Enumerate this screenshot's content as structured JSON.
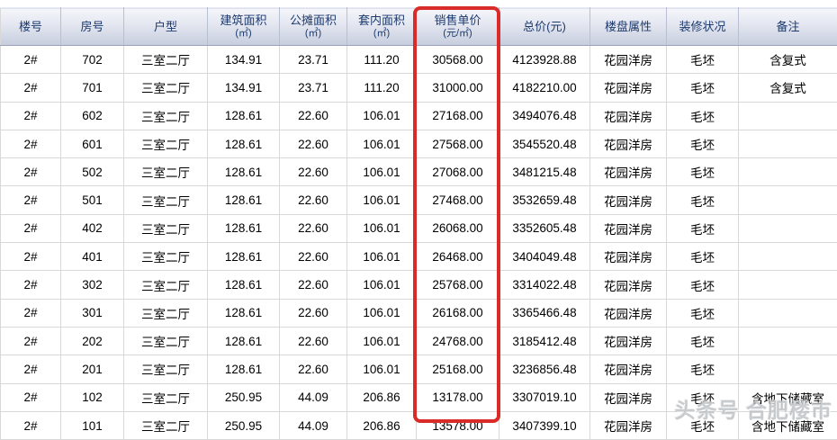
{
  "table": {
    "columns": [
      {
        "label": "楼号",
        "sub": ""
      },
      {
        "label": "房号",
        "sub": ""
      },
      {
        "label": "户型",
        "sub": ""
      },
      {
        "label": "建筑面积",
        "sub": "(㎡)"
      },
      {
        "label": "公摊面积",
        "sub": "(㎡)"
      },
      {
        "label": "套内面积",
        "sub": "(㎡)"
      },
      {
        "label": "销售单价",
        "sub": "(元/㎡)"
      },
      {
        "label": "总价(元)",
        "sub": ""
      },
      {
        "label": "楼盘属性",
        "sub": ""
      },
      {
        "label": "装修状况",
        "sub": ""
      },
      {
        "label": "备注",
        "sub": ""
      }
    ],
    "rows": [
      [
        "2#",
        "702",
        "三室二厅",
        "134.91",
        "23.71",
        "111.20",
        "30568.00",
        "4123928.88",
        "花园洋房",
        "毛坯",
        "含复式"
      ],
      [
        "2#",
        "701",
        "三室二厅",
        "134.91",
        "23.71",
        "111.20",
        "31000.00",
        "4182210.00",
        "花园洋房",
        "毛坯",
        "含复式"
      ],
      [
        "2#",
        "602",
        "三室二厅",
        "128.61",
        "22.60",
        "106.01",
        "27168.00",
        "3494076.48",
        "花园洋房",
        "毛坯",
        ""
      ],
      [
        "2#",
        "601",
        "三室二厅",
        "128.61",
        "22.60",
        "106.01",
        "27568.00",
        "3545520.48",
        "花园洋房",
        "毛坯",
        ""
      ],
      [
        "2#",
        "502",
        "三室二厅",
        "128.61",
        "22.60",
        "106.01",
        "27068.00",
        "3481215.48",
        "花园洋房",
        "毛坯",
        ""
      ],
      [
        "2#",
        "501",
        "三室二厅",
        "128.61",
        "22.60",
        "106.01",
        "27468.00",
        "3532659.48",
        "花园洋房",
        "毛坯",
        ""
      ],
      [
        "2#",
        "402",
        "三室二厅",
        "128.61",
        "22.60",
        "106.01",
        "26068.00",
        "3352605.48",
        "花园洋房",
        "毛坯",
        ""
      ],
      [
        "2#",
        "401",
        "三室二厅",
        "128.61",
        "22.60",
        "106.01",
        "26468.00",
        "3404049.48",
        "花园洋房",
        "毛坯",
        ""
      ],
      [
        "2#",
        "302",
        "三室二厅",
        "128.61",
        "22.60",
        "106.01",
        "25768.00",
        "3314022.48",
        "花园洋房",
        "毛坯",
        ""
      ],
      [
        "2#",
        "301",
        "三室二厅",
        "128.61",
        "22.60",
        "106.01",
        "26168.00",
        "3365466.48",
        "花园洋房",
        "毛坯",
        ""
      ],
      [
        "2#",
        "202",
        "三室二厅",
        "128.61",
        "22.60",
        "106.01",
        "24768.00",
        "3185412.48",
        "花园洋房",
        "毛坯",
        ""
      ],
      [
        "2#",
        "201",
        "三室二厅",
        "128.61",
        "22.60",
        "106.01",
        "25168.00",
        "3236856.48",
        "花园洋房",
        "毛坯",
        ""
      ],
      [
        "2#",
        "102",
        "三室二厅",
        "250.95",
        "44.09",
        "206.86",
        "13178.00",
        "3307019.10",
        "花园洋房",
        "毛坯",
        "含地下储藏室"
      ],
      [
        "2#",
        "101",
        "三室二厅",
        "250.95",
        "44.09",
        "206.86",
        "13578.00",
        "3407399.10",
        "花园洋房",
        "毛坯",
        "含地下储藏室"
      ]
    ]
  },
  "highlight": {
    "highlighted_column": "销售单价(元/㎡)",
    "color": "#d92c28"
  },
  "watermark": {
    "text": "头条号 合肥楼市"
  }
}
